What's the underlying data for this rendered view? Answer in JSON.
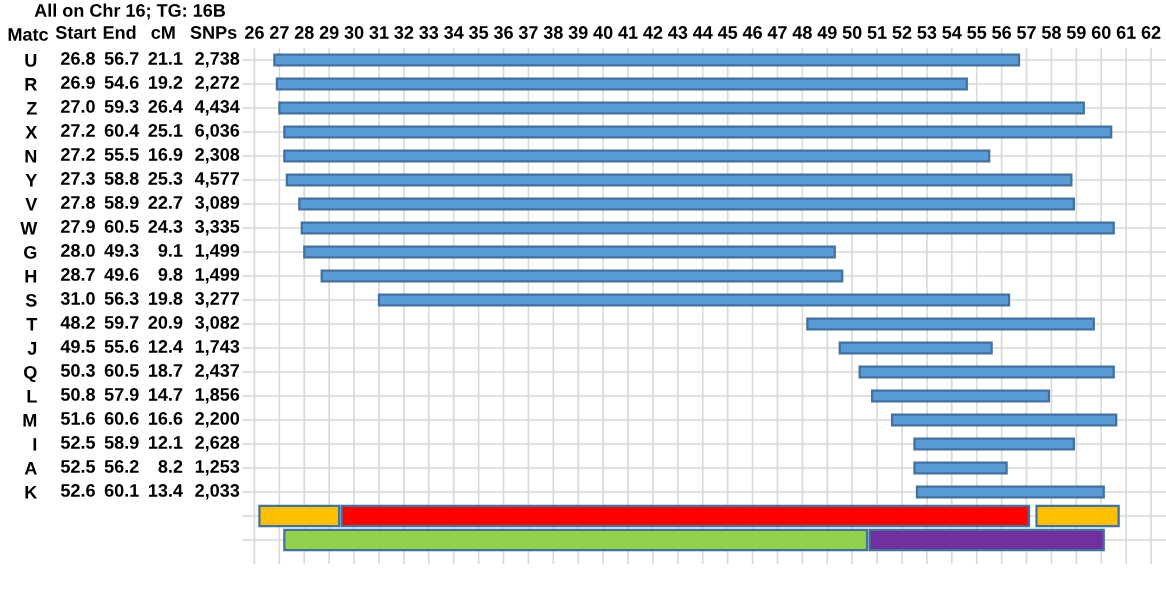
{
  "chart_data": [
    {
      "type": "heatmap",
      "title": "All on Chr 16; TG: 16B",
      "ylabel": "Matc",
      "categories": [
        "Start",
        "End",
        "cM",
        "SNPs"
      ],
      "y_categories": [
        "U",
        "R",
        "Z",
        "X",
        "N",
        "Y",
        "V",
        "W",
        "G",
        "H",
        "S",
        "T",
        "J",
        "Q",
        "L",
        "M",
        "I",
        "A",
        "K"
      ],
      "cells": [
        [
          null,
          null,
          null,
          null
        ],
        [
          null,
          null,
          null,
          null
        ],
        [
          null,
          null,
          null,
          null
        ],
        [
          null,
          null,
          null,
          null
        ],
        [
          null,
          null,
          null,
          null
        ],
        [
          null,
          null,
          null,
          null
        ],
        [
          null,
          null,
          null,
          null
        ],
        [
          null,
          null,
          null,
          null
        ],
        [
          null,
          null,
          null,
          null
        ],
        [
          null,
          null,
          null,
          null
        ],
        [
          null,
          null,
          null,
          null
        ],
        [
          null,
          null,
          null,
          null
        ],
        [
          null,
          null,
          null,
          null
        ],
        [
          null,
          null,
          null,
          null
        ],
        [
          null,
          null,
          null,
          null
        ],
        [
          null,
          null,
          null,
          null
        ],
        [
          null,
          null,
          null,
          null
        ],
        [
          null,
          null,
          null,
          null
        ],
        [
          null,
          null,
          null,
          null
        ]
      ],
      "cell_labels": [
        [
          "26.8",
          "56.7",
          "21.1",
          "2,738"
        ],
        [
          "26.9",
          "54.6",
          "19.2",
          "2,272"
        ],
        [
          "27.0",
          "59.3",
          "26.4",
          "4,434"
        ],
        [
          "27.2",
          "60.4",
          "25.1",
          "6,036"
        ],
        [
          "27.2",
          "55.5",
          "16.9",
          "2,308"
        ],
        [
          "27.3",
          "58.8",
          "25.3",
          "4,577"
        ],
        [
          "27.8",
          "58.9",
          "22.7",
          "3,089"
        ],
        [
          "27.9",
          "60.5",
          "24.3",
          "3,335"
        ],
        [
          "28.0",
          "49.3",
          "9.1",
          "1,499"
        ],
        [
          "28.7",
          "49.6",
          "9.8",
          "1,499"
        ],
        [
          "31.0",
          "56.3",
          "19.8",
          "3,277"
        ],
        [
          "48.2",
          "59.7",
          "20.9",
          "3,082"
        ],
        [
          "49.5",
          "55.6",
          "12.4",
          "1,743"
        ],
        [
          "50.3",
          "60.5",
          "18.7",
          "2,437"
        ],
        [
          "50.8",
          "57.9",
          "14.7",
          "1,856"
        ],
        [
          "51.6",
          "60.6",
          "16.6",
          "2,200"
        ],
        [
          "52.5",
          "58.9",
          "12.1",
          "2,628"
        ],
        [
          "52.5",
          "56.2",
          "8.2",
          "1,253"
        ],
        [
          "52.6",
          "60.1",
          "13.4",
          "2,033"
        ]
      ]
    },
    {
      "type": "bar",
      "orientation": "horizontal",
      "tick_labels": "x",
      "categories": [
        null,
        null,
        null,
        null,
        null,
        null,
        null,
        null,
        null,
        null,
        null,
        null,
        null,
        null,
        null,
        null,
        null,
        null,
        null,
        null,
        null
      ],
      "series": [
        {
          "color": "#5b9bd5",
          "base": [
            26.8,
            26.9,
            27.0,
            27.2,
            27.2,
            27.3,
            27.8,
            27.9,
            28.0,
            28.7,
            31.0,
            48.2,
            49.5,
            50.3,
            50.8,
            51.6,
            52.5,
            52.5,
            52.6,
            null,
            null
          ],
          "values": [
            29.9,
            27.7,
            32.3,
            33.2,
            28.3,
            31.5,
            31.1,
            32.6,
            21.3,
            20.9,
            25.3,
            11.5,
            6.1,
            10.2,
            7.1,
            9.0,
            6.4,
            3.7,
            7.5,
            null,
            null
          ]
        },
        {
          "color": "#ffc000",
          "base": [
            null,
            null,
            null,
            null,
            null,
            null,
            null,
            null,
            null,
            null,
            null,
            null,
            null,
            null,
            null,
            null,
            null,
            null,
            null,
            26.2,
            null
          ],
          "values": [
            null,
            null,
            null,
            null,
            null,
            null,
            null,
            null,
            null,
            null,
            null,
            null,
            null,
            null,
            null,
            null,
            null,
            null,
            null,
            3.2,
            null
          ]
        },
        {
          "color": "#ff0000",
          "base": [
            null,
            null,
            null,
            null,
            null,
            null,
            null,
            null,
            null,
            null,
            null,
            null,
            null,
            null,
            null,
            null,
            null,
            null,
            null,
            29.5,
            null
          ],
          "values": [
            null,
            null,
            null,
            null,
            null,
            null,
            null,
            null,
            null,
            null,
            null,
            null,
            null,
            null,
            null,
            null,
            null,
            null,
            null,
            27.6,
            null
          ]
        },
        {
          "color": "#ffc000",
          "base": [
            null,
            null,
            null,
            null,
            null,
            null,
            null,
            null,
            null,
            null,
            null,
            null,
            null,
            null,
            null,
            null,
            null,
            null,
            null,
            57.4,
            null
          ],
          "values": [
            null,
            null,
            null,
            null,
            null,
            null,
            null,
            null,
            null,
            null,
            null,
            null,
            null,
            null,
            null,
            null,
            null,
            null,
            null,
            3.3,
            null
          ]
        },
        {
          "color": "#92d050",
          "base": [
            null,
            null,
            null,
            null,
            null,
            null,
            null,
            null,
            null,
            null,
            null,
            null,
            null,
            null,
            null,
            null,
            null,
            null,
            null,
            null,
            27.2
          ],
          "values": [
            null,
            null,
            null,
            null,
            null,
            null,
            null,
            null,
            null,
            null,
            null,
            null,
            null,
            null,
            null,
            null,
            null,
            null,
            null,
            null,
            23.4
          ]
        },
        {
          "color": "#7030a0",
          "base": [
            null,
            null,
            null,
            null,
            null,
            null,
            null,
            null,
            null,
            null,
            null,
            null,
            null,
            null,
            null,
            null,
            null,
            null,
            null,
            null,
            50.7
          ],
          "values": [
            null,
            null,
            null,
            null,
            null,
            null,
            null,
            null,
            null,
            null,
            null,
            null,
            null,
            null,
            null,
            null,
            null,
            null,
            null,
            null,
            9.4
          ]
        }
      ],
      "xlim": [
        25.5,
        62.6
      ],
      "xticks": [
        26,
        27,
        28,
        29,
        30,
        31,
        32,
        33,
        34,
        35,
        36,
        37,
        38,
        39,
        40,
        41,
        42,
        43,
        44,
        45,
        46,
        47,
        48,
        49,
        50,
        51,
        52,
        53,
        54,
        55,
        56,
        57,
        58,
        59,
        60,
        61,
        62
      ],
      "grid": true
    }
  ]
}
